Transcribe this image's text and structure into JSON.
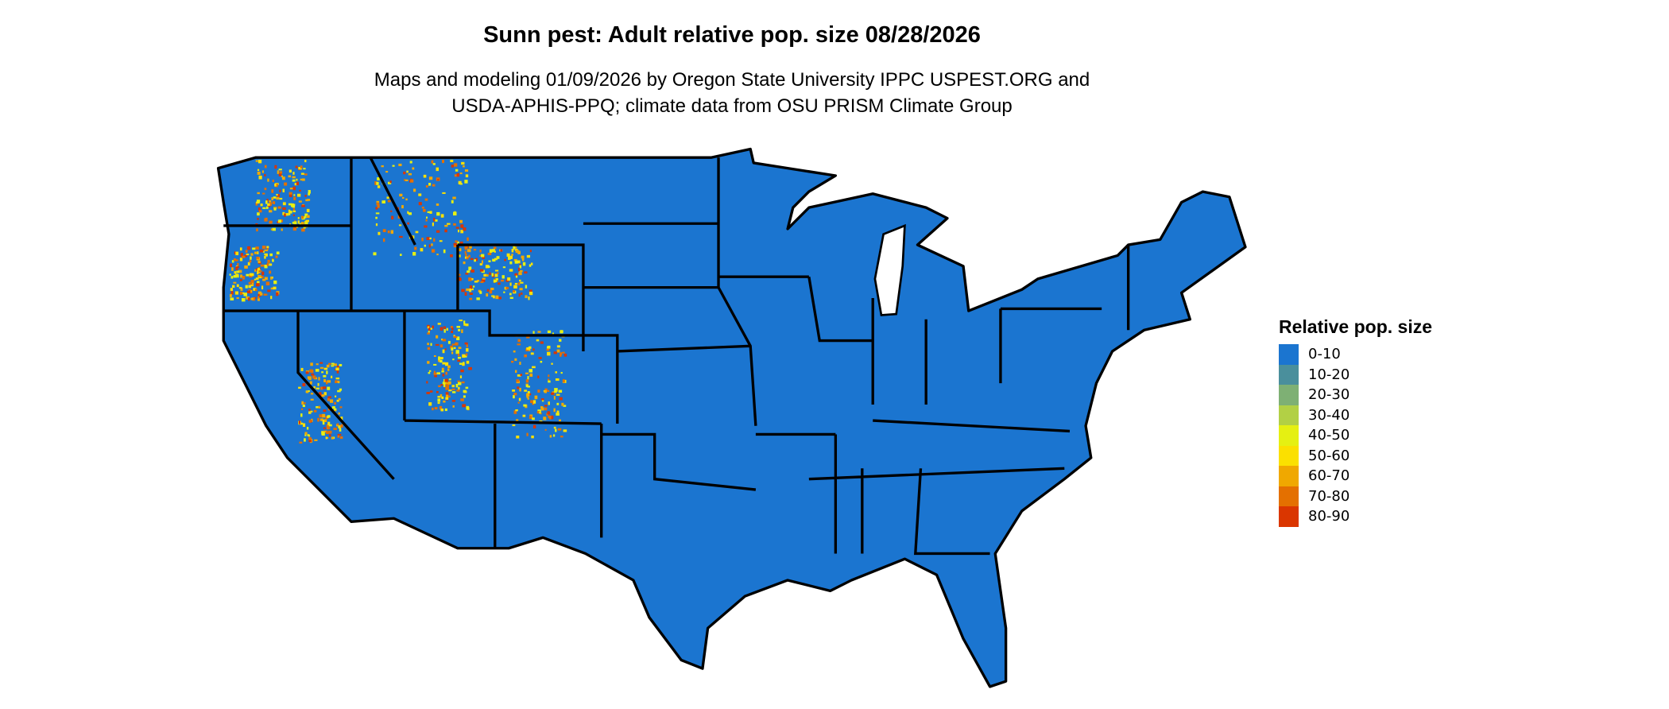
{
  "title": "Sunn pest: Adult relative pop. size 08/28/2026",
  "subtitle": {
    "line1": "Maps and modeling 01/09/2026 by Oregon State University IPPC USPEST.ORG and",
    "line2": "USDA-APHIS-PPQ; climate data from OSU PRISM Climate Group"
  },
  "map": {
    "region": "Contiguous United States",
    "base_color": "#1b75d0",
    "border_color": "#000000",
    "hotspot_regions": [
      "Washington",
      "Oregon",
      "Idaho",
      "Montana",
      "Wyoming",
      "Utah",
      "Colorado",
      "California",
      "Nevada",
      "New Mexico"
    ]
  },
  "legend": {
    "title": "Relative pop. size",
    "items": [
      {
        "label": "0-10",
        "color": "#1b75d0"
      },
      {
        "label": "10-20",
        "color": "#4a8f9c"
      },
      {
        "label": "20-30",
        "color": "#7eb074"
      },
      {
        "label": "30-40",
        "color": "#b2d045"
      },
      {
        "label": "40-50",
        "color": "#e5f012"
      },
      {
        "label": "50-60",
        "color": "#fbe000"
      },
      {
        "label": "60-70",
        "color": "#f0a800"
      },
      {
        "label": "70-80",
        "color": "#e47000"
      },
      {
        "label": "80-90",
        "color": "#da3600"
      }
    ]
  }
}
